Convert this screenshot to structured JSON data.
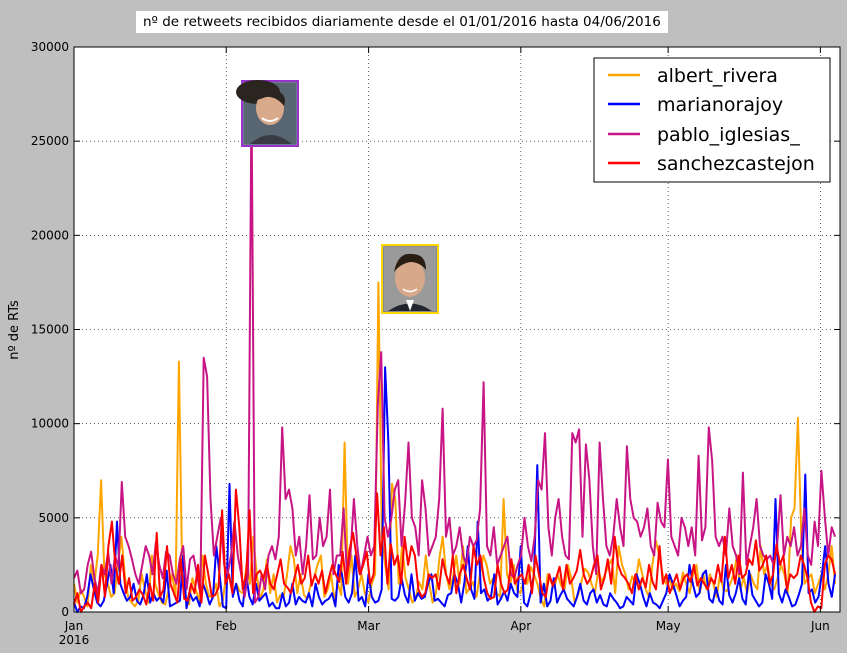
{
  "chart_data": {
    "type": "line",
    "title": "nº de retweets recibidos diariamente desde el 01/01/2016 hasta 04/06/2016",
    "xlabel": "",
    "ylabel": "nº de RTs",
    "ylim": [
      0,
      30000
    ],
    "xlim": [
      "2016-01-01",
      "2016-06-05"
    ],
    "x_start": "2016-01-01",
    "yticks": [
      0,
      5000,
      10000,
      15000,
      20000,
      25000,
      30000
    ],
    "xticks": [
      {
        "date": "2016-01-01",
        "label": "Jan",
        "sublabel": "2016"
      },
      {
        "date": "2016-02-01",
        "label": "Feb",
        "sublabel": ""
      },
      {
        "date": "2016-03-01",
        "label": "Mar",
        "sublabel": ""
      },
      {
        "date": "2016-04-01",
        "label": "Apr",
        "sublabel": ""
      },
      {
        "date": "2016-05-01",
        "label": "May",
        "sublabel": ""
      },
      {
        "date": "2016-06-01",
        "label": "Jun",
        "sublabel": ""
      }
    ],
    "grid": true,
    "legend_position": "top-right",
    "series": [
      {
        "name": "albert_rivera",
        "color": "#ffa500",
        "values": [
          1500,
          500,
          1200,
          800,
          300,
          2500,
          1500,
          3000,
          7000,
          2000,
          1500,
          800,
          1000,
          2500,
          4000,
          2000,
          800,
          500,
          300,
          600,
          2000,
          1200,
          500,
          3000,
          1500,
          900,
          500,
          400,
          1200,
          2000,
          800,
          13300,
          2000,
          800,
          400,
          1800,
          1200,
          600,
          3000,
          1500,
          800,
          900,
          1500,
          300,
          600,
          2000,
          1800,
          1000,
          1500,
          1100,
          1000,
          2500,
          1500,
          4000,
          2000,
          700,
          1200,
          2800,
          1000,
          2000,
          500,
          900,
          800,
          2000,
          3500,
          2800,
          1000,
          2000,
          900,
          700,
          1500,
          1800,
          2500,
          3000,
          800,
          1200,
          2000,
          600,
          1500,
          900,
          9000,
          1500,
          3000,
          800,
          1200,
          2000,
          1000,
          500,
          1500,
          2000,
          17500,
          4000,
          2500,
          1200,
          6800,
          6000,
          1500,
          3500,
          1800,
          1200,
          500,
          700,
          1600,
          1200,
          3000,
          1500,
          500,
          1000,
          2800,
          4000,
          2000,
          1200,
          1800,
          3000,
          1500,
          3500,
          1000,
          1300,
          1600,
          800,
          2000,
          3000,
          2500,
          1500,
          1800,
          1000,
          800,
          6000,
          2000,
          1500,
          2500,
          1200,
          1000,
          1700,
          1500,
          2400,
          2000,
          1500,
          700,
          300,
          2000,
          1600,
          1300,
          2000,
          1400,
          1200,
          2500,
          1800,
          500,
          900,
          1600,
          2300,
          2100,
          1500,
          1000,
          2200,
          1600,
          2000,
          2500,
          2800,
          1000,
          3500,
          2500,
          2000,
          1200,
          1900,
          1500,
          2800,
          2000,
          1200,
          800,
          2500,
          3800,
          3000,
          2000,
          1500,
          1800,
          1200,
          1500,
          1100,
          2100,
          1500,
          1000,
          2000,
          2500,
          1000,
          2000,
          1200,
          2000,
          1500,
          800,
          2000,
          1200,
          1100,
          1500,
          2000,
          3000,
          1200,
          1800,
          1000,
          2000,
          1500,
          1200,
          3500,
          2000,
          2500,
          1500,
          1200,
          1800,
          2500,
          2000,
          1000,
          5000,
          5500,
          10300,
          4000,
          1500,
          1800,
          2000,
          1000,
          1500,
          2000,
          1200,
          2000,
          3500,
          1500
        ]
      },
      {
        "name": "marianorajoy",
        "color": "#0000ff",
        "values": [
          500,
          0,
          300,
          200,
          800,
          2000,
          1200,
          500,
          300,
          600,
          1500,
          2500,
          1000,
          4800,
          1500,
          1000,
          600,
          800,
          1500,
          600,
          400,
          900,
          2000,
          500,
          1000,
          600,
          800,
          500,
          2200,
          300,
          400,
          500,
          600,
          3000,
          200,
          1000,
          600,
          800,
          300,
          1500,
          1000,
          400,
          800,
          3500,
          2000,
          300,
          200,
          6800,
          800,
          1500,
          600,
          300,
          2000,
          800,
          400,
          1500,
          600,
          800,
          1000,
          300,
          500,
          200,
          200,
          1000,
          300,
          500,
          1500,
          400,
          800,
          600,
          500,
          1000,
          300,
          1500,
          800,
          400,
          600,
          700,
          1000,
          300,
          2500,
          2000,
          800,
          500,
          1000,
          3000,
          600,
          800,
          300,
          2000,
          800,
          500,
          600,
          1200,
          13000,
          9000,
          700,
          600,
          800,
          1800,
          900,
          500,
          2000,
          600,
          1000,
          700,
          800,
          1500,
          2000,
          600,
          700,
          500,
          300,
          900,
          1000,
          2000,
          1500,
          500,
          1600,
          3500,
          1200,
          700,
          4800,
          1000,
          1200,
          600,
          800,
          2000,
          400,
          700,
          1100,
          600,
          1500,
          1000,
          800,
          3500,
          500,
          300,
          1000,
          2000,
          7800,
          500,
          1500,
          300,
          600,
          1800,
          500,
          900,
          1200,
          700,
          500,
          300,
          800,
          1500,
          600,
          400,
          1000,
          1200,
          500,
          900,
          400,
          300,
          1000,
          700,
          500,
          200,
          300,
          800,
          600,
          400,
          2000,
          1500,
          800,
          300,
          1000,
          500,
          400,
          200,
          600,
          1000,
          2000,
          1500,
          900,
          300,
          600,
          800,
          2500,
          1500,
          800,
          1000,
          2000,
          2200,
          700,
          500,
          1300,
          600,
          400,
          2500,
          900,
          500,
          1000,
          1800,
          700,
          400,
          2200,
          900,
          600,
          300,
          500,
          2000,
          1500,
          700,
          6000,
          1000,
          500,
          1200,
          800,
          300,
          400,
          900,
          1500,
          7300,
          1000,
          1200,
          500,
          800,
          2000,
          3500,
          1500,
          800,
          2000
        ]
      },
      {
        "name": "pablo_iglesias_",
        "color": "#c71585",
        "values": [
          1800,
          2200,
          1000,
          1200,
          2500,
          3200,
          1800,
          1000,
          2500,
          2000,
          3200,
          1500,
          3000,
          2400,
          6900,
          4000,
          3500,
          2800,
          2000,
          1500,
          2500,
          3500,
          3000,
          2000,
          3700,
          2500,
          1800,
          3200,
          3000,
          2000,
          1500,
          2800,
          3500,
          1200,
          2800,
          3000,
          2000,
          1000,
          13500,
          12500,
          6000,
          3000,
          4000,
          5000,
          2500,
          2000,
          3000,
          4800,
          3000,
          2000,
          800,
          2000,
          27400,
          500,
          800,
          2000,
          1200,
          3000,
          3500,
          2800,
          4000,
          9800,
          6000,
          6500,
          5500,
          3000,
          4000,
          2000,
          3500,
          6200,
          2800,
          3000,
          5000,
          3500,
          4000,
          6500,
          2000,
          3000,
          3000,
          5500,
          2000,
          3000,
          6000,
          3500,
          2000,
          3000,
          4000,
          3000,
          3500,
          11000,
          13800,
          5000,
          4000,
          5000,
          6500,
          7000,
          3500,
          5800,
          9000,
          5000,
          4500,
          3000,
          7000,
          5500,
          3000,
          3500,
          4000,
          6000,
          10800,
          4000,
          5000,
          3000,
          3500,
          4500,
          3000,
          2500,
          4000,
          3500,
          3800,
          5500,
          12200,
          3500,
          3000,
          4500,
          2500,
          3000,
          3500,
          4000,
          2000,
          1800,
          2500,
          3000,
          5000,
          3500,
          2700,
          4000,
          7000,
          6500,
          9500,
          4500,
          3000,
          5000,
          6000,
          4000,
          3000,
          2800,
          9500,
          9000,
          9700,
          4000,
          8900,
          7000,
          3500,
          2000,
          9000,
          6000,
          3500,
          3000,
          4000,
          6000,
          4500,
          3500,
          8800,
          6000,
          5000,
          4800,
          4000,
          4500,
          5500,
          3500,
          3000,
          5800,
          4800,
          4500,
          8100,
          4000,
          3500,
          3000,
          5000,
          4500,
          3500,
          4500,
          3000,
          8300,
          3800,
          4500,
          9800,
          8000,
          4000,
          3500,
          4000,
          3000,
          5500,
          3500,
          3000,
          2000,
          7400,
          2500,
          3500,
          4500,
          6000,
          3500,
          3000,
          2800,
          3000,
          2500,
          3500,
          6200,
          3000,
          4000,
          3500,
          4500,
          3000,
          3500,
          5500,
          3000,
          2500,
          4800,
          3500,
          7500,
          5000,
          3000,
          4500,
          4000
        ]
      },
      {
        "name": "sanchezcastejon",
        "color": "#ff0000",
        "values": [
          400,
          1000,
          0,
          300,
          500,
          200,
          1500,
          500,
          2500,
          800,
          3500,
          4800,
          2500,
          1500,
          3000,
          1000,
          1800,
          600,
          800,
          1200,
          900,
          400,
          1500,
          600,
          4200,
          800,
          1200,
          3500,
          1500,
          1000,
          500,
          2800,
          700,
          600,
          1500,
          1000,
          2500,
          500,
          3000,
          2000,
          800,
          900,
          1300,
          5400,
          1500,
          2000,
          1000,
          6500,
          4500,
          1200,
          2000,
          5400,
          1000,
          2000,
          2200,
          1800,
          2500,
          1500,
          1200,
          2000,
          2800,
          1500,
          1300,
          1000,
          1800,
          2500,
          1500,
          1800,
          3000,
          1400,
          2000,
          1500,
          2200,
          1000,
          1800,
          2500,
          2000,
          1600,
          3200,
          1500,
          3300,
          4200,
          3000,
          2000,
          2500,
          3200,
          1500,
          2000,
          6300,
          3000,
          4500,
          1500,
          3600,
          2500,
          3000,
          1500,
          4000,
          2500,
          3500,
          3000,
          1200,
          800,
          1000,
          2000,
          1800,
          2000,
          1200,
          2800,
          2000,
          1500,
          3000,
          1000,
          2000,
          2500,
          1800,
          1200,
          3500,
          2500,
          3000,
          1800,
          1000,
          700,
          800,
          2500,
          1500,
          1000,
          1200,
          2800,
          1500,
          1800,
          2000,
          1500,
          2500,
          1000,
          3000,
          2000,
          1000,
          800,
          2000,
          1400,
          1800,
          2400,
          1200,
          2500,
          1500,
          1800,
          2200,
          3300,
          2000,
          1500,
          1800,
          2500,
          3000,
          1200,
          1800,
          2800,
          1500,
          4000,
          2500,
          2000,
          1800,
          1500,
          1000,
          2000,
          1200,
          1800,
          1300,
          2500,
          1600,
          1200,
          3500,
          1500,
          2000,
          1000,
          1500,
          2000,
          1200,
          1800,
          2000,
          1600,
          2500,
          1400,
          1800,
          1500,
          1200,
          1800,
          1500,
          2500,
          1600,
          4000,
          1800,
          2500,
          1500,
          3000,
          1800,
          2000,
          2800,
          2500,
          3800,
          2200,
          2500,
          3000,
          1500,
          2000,
          3600,
          2500,
          3000,
          1200,
          2000,
          1800,
          2000,
          3000,
          2500,
          1800,
          500,
          0,
          300,
          200,
          2500,
          3000,
          2800,
          2000
        ]
      }
    ]
  },
  "annotations": {
    "photo1": {
      "icon": "pablo-iglesias-portrait",
      "border_color": "#9932cc"
    },
    "photo2": {
      "icon": "albert-rivera-portrait",
      "border_color": "#ffd700"
    }
  }
}
